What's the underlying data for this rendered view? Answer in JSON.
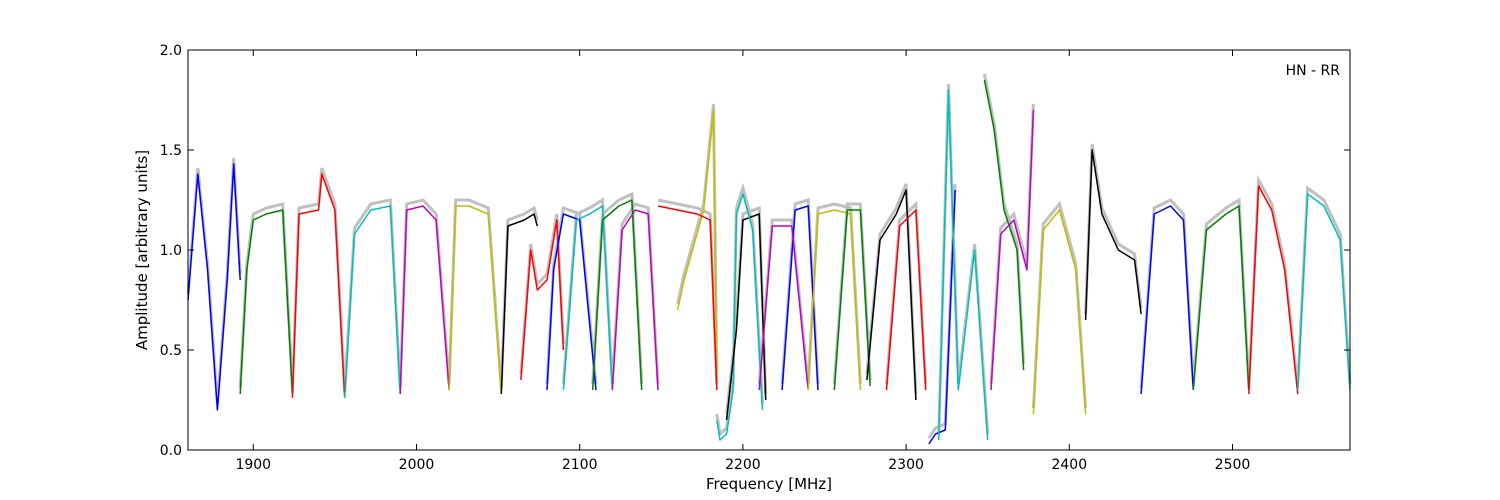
{
  "chart_data": {
    "type": "line",
    "title": "",
    "xlabel": "Frequency [MHz]",
    "ylabel": "Amplitude [arbitrary units]",
    "xlim": [
      1860,
      2572
    ],
    "ylim": [
      0.0,
      2.0
    ],
    "xticks": [
      1900,
      2000,
      2100,
      2200,
      2300,
      2400,
      2500
    ],
    "yticks": [
      0.0,
      0.5,
      1.0,
      1.5,
      2.0
    ],
    "xtick_labels": [
      "1900",
      "2000",
      "2100",
      "2200",
      "2300",
      "2400",
      "2500"
    ],
    "ytick_labels": [
      "0.0",
      "0.5",
      "1.0",
      "1.5",
      "2.0"
    ],
    "annotation": "HN - RR",
    "grid": false,
    "background_color": "#c0c0c0",
    "series": [
      {
        "color": "#0000ff",
        "x": [
          1860,
          1866,
          1872,
          1878,
          1884,
          1888,
          1892
        ],
        "y": [
          0.75,
          1.38,
          0.9,
          0.2,
          0.85,
          1.43,
          0.85
        ]
      },
      {
        "color": "#008000",
        "x": [
          1892,
          1896,
          1900,
          1908,
          1918,
          1924
        ],
        "y": [
          0.28,
          0.9,
          1.15,
          1.18,
          1.2,
          0.28
        ]
      },
      {
        "color": "#ff0000",
        "x": [
          1924,
          1928,
          1940,
          1942,
          1950,
          1956
        ],
        "y": [
          0.26,
          1.18,
          1.2,
          1.38,
          1.2,
          0.26
        ]
      },
      {
        "color": "#00bfbf",
        "x": [
          1956,
          1962,
          1972,
          1984,
          1990
        ],
        "y": [
          0.26,
          1.08,
          1.2,
          1.22,
          0.28
        ]
      },
      {
        "color": "#bf00bf",
        "x": [
          1990,
          1994,
          2004,
          2012,
          2020
        ],
        "y": [
          0.28,
          1.2,
          1.22,
          1.15,
          0.3
        ]
      },
      {
        "color": "#bfbf00",
        "x": [
          2020,
          2024,
          2032,
          2044,
          2052
        ],
        "y": [
          0.3,
          1.22,
          1.22,
          1.18,
          0.28
        ]
      },
      {
        "color": "#000000",
        "x": [
          2052,
          2056,
          2066,
          2072,
          2074
        ],
        "y": [
          0.28,
          1.12,
          1.15,
          1.18,
          1.12
        ]
      },
      {
        "color": "#ff0000",
        "x": [
          2064,
          2070,
          2074,
          2080,
          2086,
          2090
        ],
        "y": [
          0.35,
          1.0,
          0.8,
          0.85,
          1.15,
          0.5
        ]
      },
      {
        "color": "#0000ff",
        "x": [
          2080,
          2084,
          2090,
          2100,
          2110
        ],
        "y": [
          0.3,
          0.9,
          1.18,
          1.15,
          0.3
        ]
      },
      {
        "color": "#00bfbf",
        "x": [
          2090,
          2098,
          2106,
          2114,
          2120
        ],
        "y": [
          0.3,
          1.15,
          1.18,
          1.22,
          0.3
        ]
      },
      {
        "color": "#bf00bf",
        "x": [
          2120,
          2126,
          2134,
          2142,
          2148
        ],
        "y": [
          0.3,
          1.1,
          1.2,
          1.18,
          0.3
        ]
      },
      {
        "color": "#008000",
        "x": [
          2108,
          2114,
          2124,
          2132,
          2138
        ],
        "y": [
          0.3,
          1.15,
          1.22,
          1.25,
          0.3
        ]
      },
      {
        "color": "#bfbf00",
        "x": [
          2160,
          2164,
          2176,
          2182,
          2184
        ],
        "y": [
          0.7,
          0.85,
          1.2,
          1.7,
          0.35
        ]
      },
      {
        "color": "#ff0000",
        "x": [
          2148,
          2160,
          2172,
          2180,
          2184
        ],
        "y": [
          1.22,
          1.2,
          1.18,
          1.15,
          0.3
        ]
      },
      {
        "color": "#00bfbf",
        "x": [
          2184,
          2186,
          2190,
          2194,
          2196
        ],
        "y": [
          0.15,
          0.05,
          0.08,
          0.3,
          1.18
        ]
      },
      {
        "color": "#000000",
        "x": [
          2190,
          2196,
          2200,
          2210,
          2214
        ],
        "y": [
          0.15,
          0.6,
          1.15,
          1.18,
          0.25
        ]
      },
      {
        "color": "#00bfbf",
        "x": [
          2196,
          2200,
          2206,
          2212
        ],
        "y": [
          1.18,
          1.28,
          1.1,
          0.2
        ]
      },
      {
        "color": "#0000ff",
        "x": [
          2224,
          2232,
          2240,
          2246
        ],
        "y": [
          0.3,
          1.2,
          1.22,
          0.3
        ]
      },
      {
        "color": "#bf00bf",
        "x": [
          2210,
          2218,
          2230,
          2240
        ],
        "y": [
          0.3,
          1.12,
          1.12,
          0.3
        ]
      },
      {
        "color": "#bfbf00",
        "x": [
          2240,
          2246,
          2256,
          2266,
          2272
        ],
        "y": [
          0.3,
          1.18,
          1.2,
          1.18,
          0.3
        ]
      },
      {
        "color": "#008000",
        "x": [
          2256,
          2264,
          2272,
          2278
        ],
        "y": [
          0.3,
          1.2,
          1.2,
          0.32
        ]
      },
      {
        "color": "#000000",
        "x": [
          2276,
          2284,
          2294,
          2300,
          2306
        ],
        "y": [
          0.35,
          1.05,
          1.18,
          1.3,
          0.25
        ]
      },
      {
        "color": "#ff0000",
        "x": [
          2288,
          2296,
          2306,
          2312
        ],
        "y": [
          0.3,
          1.12,
          1.2,
          0.3
        ]
      },
      {
        "color": "#0000ff",
        "x": [
          2314,
          2318,
          2324,
          2330
        ],
        "y": [
          0.03,
          0.08,
          0.1,
          1.3
        ]
      },
      {
        "color": "#00bfbf",
        "x": [
          2320,
          2326,
          2332,
          2342,
          2350
        ],
        "y": [
          0.05,
          1.8,
          0.3,
          1.0,
          0.05
        ]
      },
      {
        "color": "#008000",
        "x": [
          2348,
          2354,
          2360,
          2368,
          2372
        ],
        "y": [
          1.85,
          1.6,
          1.2,
          1.0,
          0.4
        ]
      },
      {
        "color": "#bf00bf",
        "x": [
          2352,
          2358,
          2366,
          2374,
          2378
        ],
        "y": [
          0.3,
          1.08,
          1.15,
          0.9,
          1.7
        ]
      },
      {
        "color": "#bfbf00",
        "x": [
          2378,
          2384,
          2394,
          2404,
          2410
        ],
        "y": [
          0.18,
          1.1,
          1.2,
          0.9,
          0.18
        ]
      },
      {
        "color": "#000000",
        "x": [
          2410,
          2414,
          2420,
          2430,
          2440,
          2444
        ],
        "y": [
          0.65,
          1.5,
          1.18,
          1.0,
          0.95,
          0.68
        ]
      },
      {
        "color": "#0000ff",
        "x": [
          2444,
          2452,
          2462,
          2470,
          2476
        ],
        "y": [
          0.28,
          1.18,
          1.22,
          1.15,
          0.3
        ]
      },
      {
        "color": "#008000",
        "x": [
          2476,
          2484,
          2496,
          2504,
          2510
        ],
        "y": [
          0.3,
          1.1,
          1.18,
          1.22,
          0.3
        ]
      },
      {
        "color": "#ff0000",
        "x": [
          2510,
          2516,
          2524,
          2532,
          2540
        ],
        "y": [
          0.28,
          1.32,
          1.2,
          0.9,
          0.28
        ]
      },
      {
        "color": "#00bfbf",
        "x": [
          2540,
          2546,
          2556,
          2566,
          2572
        ],
        "y": [
          0.3,
          1.28,
          1.22,
          1.05,
          0.3
        ]
      }
    ]
  }
}
